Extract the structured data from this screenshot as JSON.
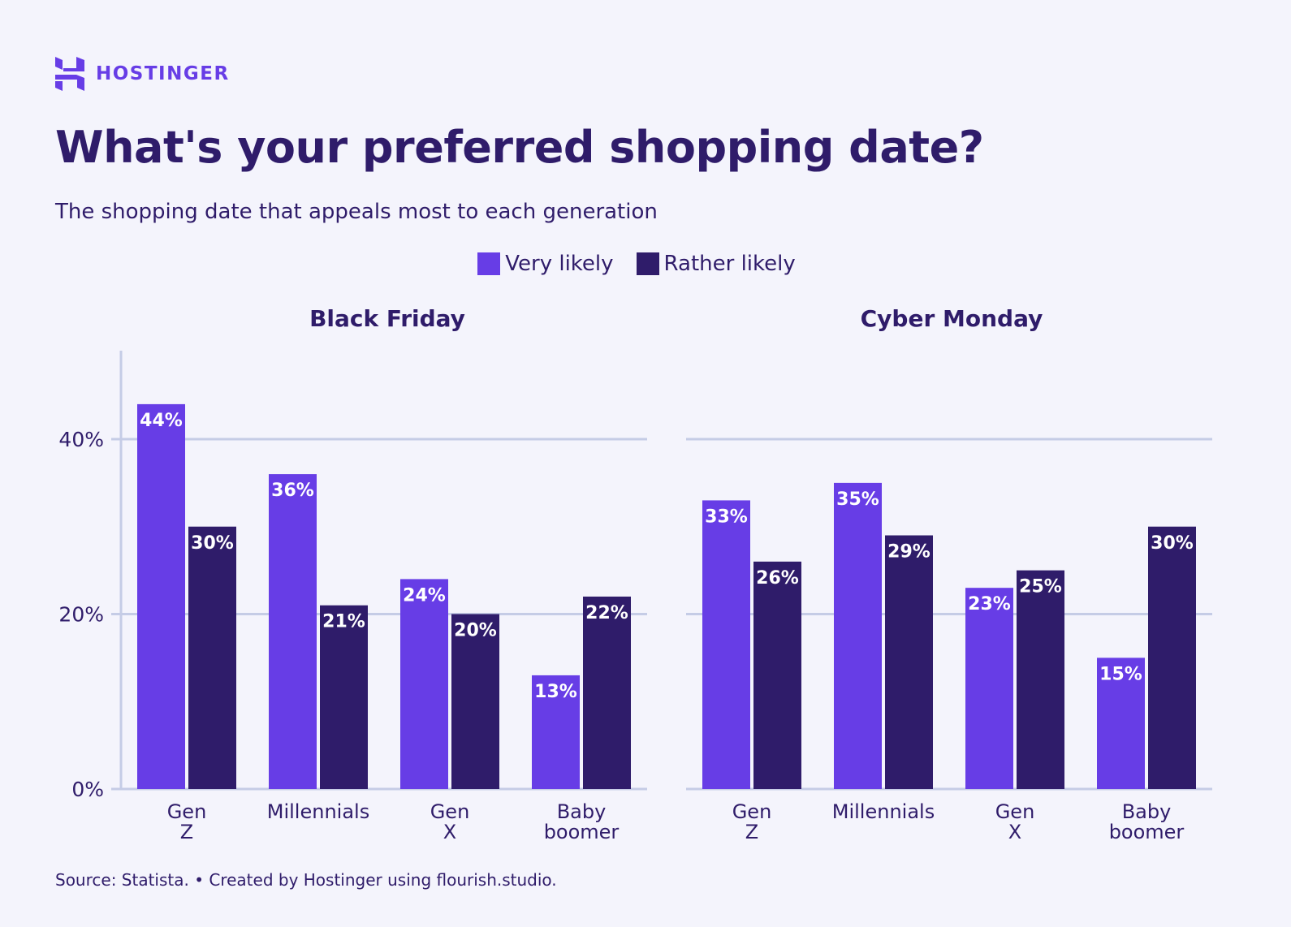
{
  "brand": {
    "name": "HOSTINGER",
    "color": "#673de6"
  },
  "title": "What's your preferred shopping date?",
  "subtitle": "The shopping date that appeals most to each generation",
  "source": "Source: Statista. • Created by Hostinger using flourish.studio.",
  "legend": [
    {
      "label": "Very likely",
      "color": "#673de6"
    },
    {
      "label": "Rather likely",
      "color": "#2f1c6a"
    }
  ],
  "chart_data": [
    {
      "type": "bar",
      "title": "Black Friday",
      "categories": [
        "Gen Z",
        "Millennials",
        "Gen X",
        "Baby boomer"
      ],
      "series": [
        {
          "name": "Very likely",
          "values": [
            44,
            36,
            24,
            13
          ]
        },
        {
          "name": "Rather likely",
          "values": [
            30,
            21,
            20,
            22
          ]
        }
      ],
      "ylim": [
        0,
        50
      ],
      "yticks": [
        "0%",
        "20%",
        "40%"
      ],
      "ytick_values": [
        0,
        20,
        40
      ],
      "grid": true,
      "legend": "top-center",
      "unit": "%"
    },
    {
      "type": "bar",
      "title": "Cyber Monday",
      "categories": [
        "Gen Z",
        "Millennials",
        "Gen X",
        "Baby boomer"
      ],
      "series": [
        {
          "name": "Very likely",
          "values": [
            33,
            35,
            23,
            15
          ]
        },
        {
          "name": "Rather likely",
          "values": [
            26,
            29,
            25,
            30
          ]
        }
      ],
      "ylim": [
        0,
        50
      ],
      "yticks": [],
      "ytick_values": [
        0,
        20,
        40
      ],
      "grid": true,
      "legend": "top-center",
      "unit": "%"
    }
  ]
}
